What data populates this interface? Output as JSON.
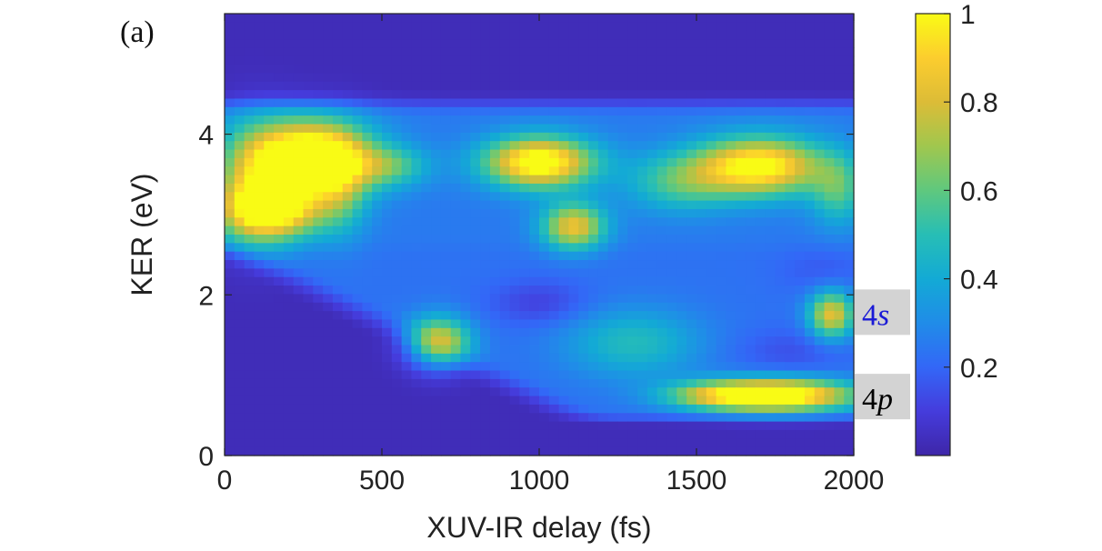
{
  "chart_data": {
    "type": "heatmap",
    "panel_label": "(a)",
    "xlabel": "XUV-IR delay (fs)",
    "ylabel": "KER (eV)",
    "xlim": [
      0,
      2000
    ],
    "ylim": [
      0,
      5.5
    ],
    "xticks": [
      "0",
      "500",
      "1000",
      "1500",
      "2000"
    ],
    "yticks": [
      "0",
      "2",
      "4"
    ],
    "colorbar": {
      "colormap": "parula",
      "range": [
        0,
        1
      ],
      "ticks": [
        "0.2",
        "0.4",
        "0.6",
        "0.8",
        "1"
      ]
    },
    "annotations": [
      {
        "text": "4s",
        "ker": 1.75,
        "color": "#1a1ad6"
      },
      {
        "text": "4p",
        "ker": 0.7,
        "color": "#000000"
      }
    ],
    "grid": false,
    "features": [
      {
        "delay": 270,
        "ker": 3.7,
        "intensity": 1.0
      },
      {
        "delay": 150,
        "ker": 3.05,
        "intensity": 0.75
      },
      {
        "delay": 1000,
        "ker": 3.65,
        "intensity": 0.85
      },
      {
        "delay": 1700,
        "ker": 3.6,
        "intensity": 0.8
      },
      {
        "delay": 1110,
        "ker": 2.85,
        "intensity": 0.6
      },
      {
        "delay": 680,
        "ker": 1.4,
        "intensity": 0.6
      },
      {
        "delay": 1760,
        "ker": 0.75,
        "intensity": 0.9
      },
      {
        "delay": 1930,
        "ker": 1.75,
        "intensity": 0.6
      }
    ]
  }
}
